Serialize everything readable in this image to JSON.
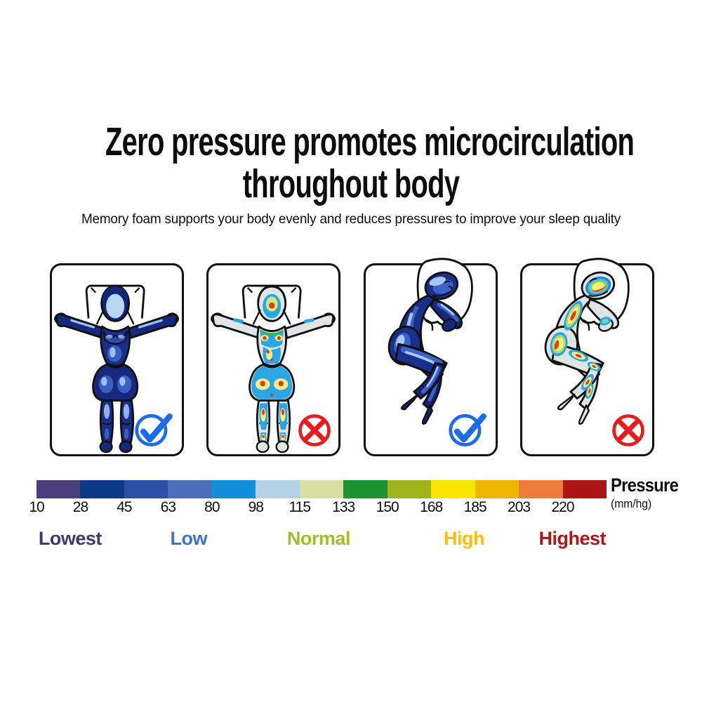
{
  "header": {
    "title_line1": "Zero pressure promotes microcirculation",
    "title_line2": "throughout body",
    "subtitle": "Memory foam supports your body evenly and reduces pressures to improve your sleep quality"
  },
  "panels": [
    {
      "figure": "back-sleeper-even-pressure",
      "verdict_icon": "check-icon"
    },
    {
      "figure": "back-sleeper-pressure-hotspots",
      "verdict_icon": "cross-icon"
    },
    {
      "figure": "side-sleeper-even-pressure",
      "verdict_icon": "check-icon"
    },
    {
      "figure": "side-sleeper-pressure-hotspots",
      "verdict_icon": "cross-icon"
    }
  ],
  "scale": {
    "title": "Pressure",
    "unit": "(mm/hg)",
    "ticks": [
      "10",
      "28",
      "45",
      "63",
      "80",
      "98",
      "115",
      "133",
      "150",
      "168",
      "185",
      "203",
      "220"
    ],
    "segment_colors": [
      "#4a3e7c",
      "#0d3a87",
      "#2a53a8",
      "#4a70ba",
      "#128fd9",
      "#b5cfe6",
      "#d8dfa5",
      "#1d9431",
      "#a0b21c",
      "#f8e600",
      "#f0b500",
      "#ed7c38",
      "#ad1414"
    ],
    "legend": [
      {
        "label": "Lowest",
        "color": "#3e3877",
        "pos_pct": 5.9
      },
      {
        "label": "Low",
        "color": "#4173c5",
        "pos_pct": 26.7
      },
      {
        "label": "Normal",
        "color": "#9fc02c",
        "pos_pct": 49.5
      },
      {
        "label": "High",
        "color": "#fdbf00",
        "pos_pct": 75.0
      },
      {
        "label": "Highest",
        "color": "#b41617",
        "pos_pct": 94.0
      }
    ]
  },
  "colors": {
    "accent_check": "#1a6ce8",
    "accent_cross": "#e81c1c",
    "figure_blue_dark": "#16297d",
    "figure_blue_mid": "#3a5fc0",
    "figure_blue_light": "#9dbff0",
    "figure_gray": "#dfe5e5",
    "hotspot_cyan": "#2aa6e6",
    "hotspot_green": "#aadc6e",
    "hotspot_yellow": "#f2f07a",
    "hotspot_red": "#ee3514"
  }
}
